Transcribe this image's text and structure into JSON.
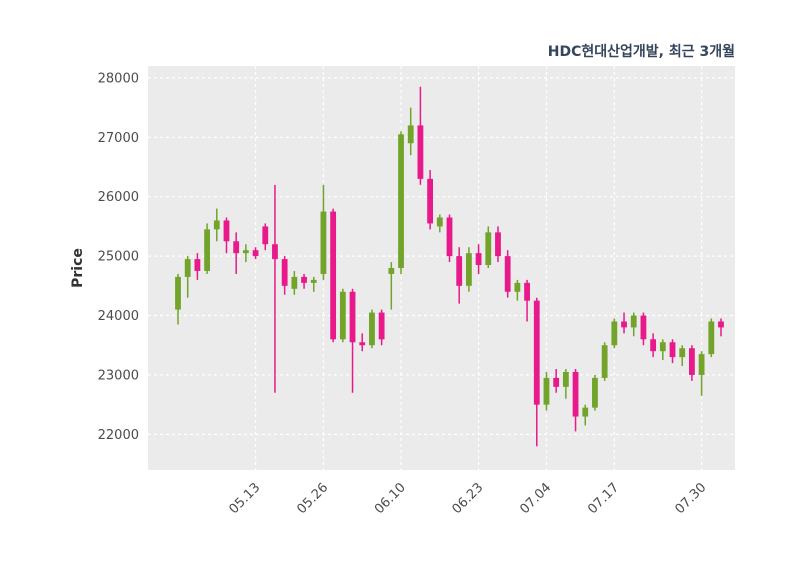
{
  "chart_data": {
    "type": "candlestick",
    "title": "HDC현대산업개발, 최근 3개월",
    "ylabel": "Price",
    "xlabel": "",
    "ylim": [
      21400,
      28200
    ],
    "y_ticks": [
      22000,
      23000,
      24000,
      25000,
      26000,
      27000,
      28000
    ],
    "x_ticks": [
      {
        "index": 8,
        "label": "05.13"
      },
      {
        "index": 15,
        "label": "05.26"
      },
      {
        "index": 23,
        "label": "06.10"
      },
      {
        "index": 31,
        "label": "06.23"
      },
      {
        "index": 38,
        "label": "07.04"
      },
      {
        "index": 45,
        "label": "07.17"
      },
      {
        "index": 54,
        "label": "07.30"
      }
    ],
    "grid": true,
    "legend_position": "none",
    "colors": {
      "up": "#72a32b",
      "down": "#e8198b",
      "plot_bg": "#ebebeb",
      "grid": "#ffffff",
      "figure_bg": "#ffffff",
      "title": "#36455e",
      "tick": "#4d4d4d"
    },
    "ohlc_order": [
      "open",
      "high",
      "low",
      "close"
    ],
    "candles_ohlc": [
      [
        24100,
        24700,
        23850,
        24650
      ],
      [
        24650,
        25000,
        24300,
        24950
      ],
      [
        24950,
        25050,
        24600,
        24750
      ],
      [
        24750,
        25550,
        24700,
        25450
      ],
      [
        25450,
        25800,
        25250,
        25600
      ],
      [
        25600,
        25650,
        25050,
        25250
      ],
      [
        25250,
        25400,
        24700,
        25050
      ],
      [
        25050,
        25200,
        24900,
        25100
      ],
      [
        25100,
        25150,
        24950,
        25000
      ],
      [
        25500,
        25550,
        25100,
        25200
      ],
      [
        25200,
        26200,
        22700,
        24950
      ],
      [
        24950,
        25000,
        24350,
        24500
      ],
      [
        24450,
        24750,
        24350,
        24650
      ],
      [
        24650,
        24700,
        24450,
        24550
      ],
      [
        24550,
        24650,
        24400,
        24600
      ],
      [
        24700,
        26200,
        24600,
        25750
      ],
      [
        25750,
        25800,
        23550,
        23600
      ],
      [
        23600,
        24450,
        23550,
        24400
      ],
      [
        24400,
        24450,
        22700,
        23550
      ],
      [
        23550,
        23700,
        23400,
        23500
      ],
      [
        23500,
        24100,
        23450,
        24050
      ],
      [
        24050,
        24100,
        23500,
        23600
      ],
      [
        24700,
        24900,
        24100,
        24800
      ],
      [
        24800,
        27100,
        24700,
        27050
      ],
      [
        26900,
        27500,
        26700,
        27200
      ],
      [
        27200,
        27850,
        26200,
        26300
      ],
      [
        26300,
        26450,
        25450,
        25550
      ],
      [
        25500,
        25700,
        25400,
        25650
      ],
      [
        25650,
        25700,
        24900,
        25000
      ],
      [
        25000,
        25150,
        24200,
        24500
      ],
      [
        24500,
        25150,
        24400,
        25050
      ],
      [
        25050,
        25200,
        24700,
        24850
      ],
      [
        24850,
        25500,
        24800,
        25400
      ],
      [
        25400,
        25500,
        24900,
        25000
      ],
      [
        25000,
        25100,
        24300,
        24400
      ],
      [
        24400,
        24600,
        24250,
        24550
      ],
      [
        24550,
        24600,
        23900,
        24250
      ],
      [
        24250,
        24300,
        21800,
        22500
      ],
      [
        22500,
        23050,
        22400,
        22950
      ],
      [
        22950,
        23100,
        22700,
        22800
      ],
      [
        22800,
        23100,
        22600,
        23050
      ],
      [
        23050,
        23100,
        22050,
        22300
      ],
      [
        22300,
        22500,
        22150,
        22450
      ],
      [
        22450,
        23000,
        22400,
        22950
      ],
      [
        22950,
        23550,
        22900,
        23500
      ],
      [
        23500,
        23950,
        23450,
        23900
      ],
      [
        23900,
        24050,
        23700,
        23800
      ],
      [
        23800,
        24050,
        23650,
        24000
      ],
      [
        24000,
        24050,
        23500,
        23600
      ],
      [
        23600,
        23700,
        23300,
        23400
      ],
      [
        23400,
        23600,
        23250,
        23550
      ],
      [
        23550,
        23600,
        23200,
        23300
      ],
      [
        23300,
        23500,
        23150,
        23450
      ],
      [
        23450,
        23500,
        22900,
        23000
      ],
      [
        23000,
        23400,
        22650,
        23350
      ],
      [
        23350,
        23950,
        23300,
        23900
      ],
      [
        23900,
        23950,
        23650,
        23800
      ]
    ]
  }
}
